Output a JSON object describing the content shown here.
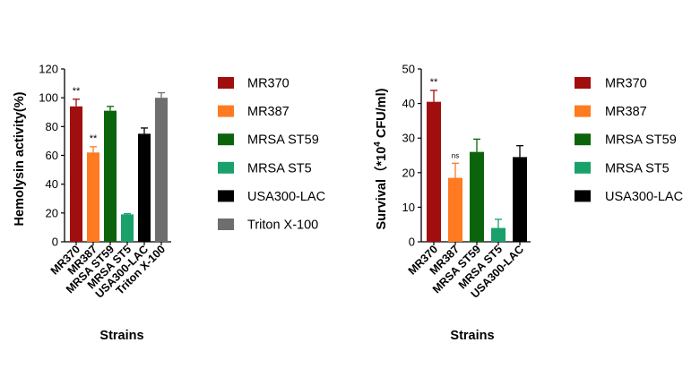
{
  "chart_data": [
    {
      "type": "bar",
      "ylabel": "Hemolysin activity(%)",
      "xlabel": "Strains",
      "ylim": [
        0,
        120
      ],
      "yticks": [
        0,
        20,
        40,
        60,
        80,
        100,
        120
      ],
      "categories": [
        "MR370",
        "MR387",
        "MRSA ST59",
        "MRSA ST5",
        "USA300-LAC",
        "Triton X-100"
      ],
      "values": [
        94,
        62,
        91,
        19,
        75,
        100
      ],
      "errors": [
        5,
        4,
        3,
        0.5,
        4,
        3.5
      ],
      "annotations": [
        "**",
        "**",
        "",
        "",
        "",
        ""
      ],
      "colors": [
        "#a00e0e",
        "#ff7a21",
        "#0b640b",
        "#1aa06b",
        "#000000",
        "#6e6e6e"
      ],
      "legend": [
        "MR370",
        "MR387",
        "MRSA ST59",
        "MRSA ST5",
        "USA300-LAC",
        "Triton X-100"
      ]
    },
    {
      "type": "bar",
      "ylabel": "Survival（*10",
      "ylabel_sup": "4",
      "ylabel_rest": " CFU/ml)",
      "xlabel": "Strains",
      "ylim": [
        0,
        50
      ],
      "yticks": [
        0,
        10,
        20,
        30,
        40,
        50
      ],
      "categories": [
        "MR370",
        "MR387",
        "MRSA ST59",
        "MRSA ST5",
        "USA300-LAC"
      ],
      "values": [
        40.5,
        18.5,
        26,
        4,
        24.5
      ],
      "errors": [
        3.3,
        4.2,
        3.7,
        2.5,
        3.3
      ],
      "annotations": [
        "**",
        "ns",
        "",
        "",
        ""
      ],
      "colors": [
        "#a00e0e",
        "#ff7a21",
        "#0b640b",
        "#1aa06b",
        "#000000"
      ],
      "legend": [
        "MR370",
        "MR387",
        "MRSA ST59",
        "MRSA ST5",
        "USA300-LAC"
      ]
    }
  ]
}
